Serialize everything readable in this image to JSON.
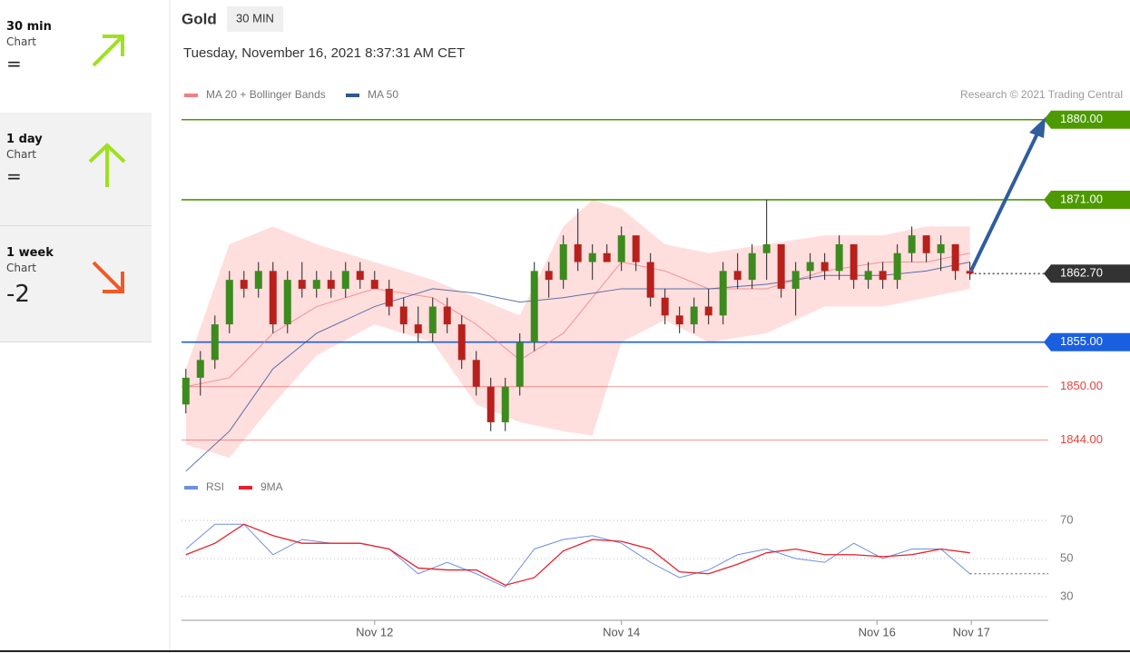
{
  "sidebar": {
    "items": [
      {
        "period": "30 min",
        "label": "Chart",
        "value": "="
      },
      {
        "period": "1 day",
        "label": "Chart",
        "value": "="
      },
      {
        "period": "1 week",
        "label": "Chart",
        "value": "-2"
      }
    ]
  },
  "chart_data": {
    "type": "candlestick",
    "title": "Gold",
    "timeframe": "30 MIN",
    "subtitle": "Tuesday, November 16, 2021 8:37:31 AM CET",
    "annotation": "Research © 2021 Trading Central",
    "up_color": "#3d8b1e",
    "down_color": "#b8201c",
    "x": [
      0,
      1,
      2,
      3,
      4,
      5,
      6,
      7,
      8,
      9,
      10,
      11,
      12,
      13,
      14,
      15,
      16,
      17,
      18,
      19,
      20,
      21,
      22,
      23,
      24,
      25,
      26,
      27,
      28,
      29,
      30,
      31,
      32,
      33,
      34,
      35,
      36,
      37,
      38,
      39,
      40,
      41,
      42,
      43,
      44,
      45,
      46,
      47,
      48,
      49,
      50,
      51,
      52,
      53,
      54
    ],
    "open": [
      1848,
      1851,
      1853,
      1857,
      1862,
      1861,
      1863,
      1857,
      1862,
      1861,
      1862,
      1861,
      1863,
      1862,
      1861,
      1859,
      1857,
      1856,
      1859,
      1857,
      1853,
      1850,
      1846,
      1850,
      1855,
      1863,
      1862,
      1866,
      1864,
      1865,
      1864,
      1867,
      1864,
      1860,
      1858,
      1857,
      1859,
      1858,
      1863,
      1862,
      1865,
      1866,
      1861,
      1863,
      1864,
      1863,
      1866,
      1862,
      1863,
      1862,
      1865,
      1867,
      1865,
      1866,
      1863
    ],
    "high": [
      1852,
      1854,
      1858,
      1863,
      1863,
      1864,
      1864,
      1863,
      1864,
      1863,
      1863,
      1864,
      1864,
      1863,
      1862,
      1860,
      1859,
      1860,
      1860,
      1858,
      1854,
      1851,
      1851,
      1856,
      1864,
      1864,
      1867,
      1870,
      1866,
      1866,
      1868,
      1867,
      1865,
      1861,
      1859,
      1860,
      1861,
      1864,
      1865,
      1866,
      1871,
      1866,
      1864,
      1865,
      1865,
      1867,
      1866,
      1864,
      1864,
      1866,
      1868,
      1867,
      1867,
      1866,
      1864
    ],
    "low": [
      1847,
      1849,
      1852,
      1856,
      1860,
      1860,
      1856,
      1856,
      1860,
      1860,
      1860,
      1860,
      1861,
      1861,
      1858,
      1856,
      1855,
      1855,
      1856,
      1852,
      1849,
      1845,
      1845,
      1849,
      1854,
      1860,
      1861,
      1863,
      1862,
      1864,
      1863,
      1863,
      1859,
      1857,
      1856,
      1856,
      1857,
      1857,
      1861,
      1861,
      1862,
      1860,
      1858,
      1862,
      1862,
      1862,
      1861,
      1861,
      1861,
      1861,
      1864,
      1864,
      1863,
      1862,
      1862
    ],
    "close": [
      1851,
      1853,
      1857,
      1862,
      1861,
      1863,
      1857,
      1862,
      1861,
      1862,
      1861,
      1863,
      1862,
      1861,
      1859,
      1857,
      1856,
      1859,
      1857,
      1853,
      1850,
      1846,
      1850,
      1855,
      1863,
      1862,
      1866,
      1864,
      1865,
      1864,
      1867,
      1864,
      1860,
      1858,
      1857,
      1859,
      1858,
      1863,
      1862,
      1865,
      1866,
      1861,
      1863,
      1864,
      1863,
      1866,
      1862,
      1863,
      1862,
      1865,
      1867,
      1865,
      1866,
      1863,
      1862.7
    ],
    "xlim": [
      -0.3,
      59.4
    ],
    "xticks": [
      {
        "value": 13,
        "label": "Nov 12"
      },
      {
        "value": 30,
        "label": "Nov 14"
      },
      {
        "value": 47.6,
        "label": "Nov 16"
      },
      {
        "value": 54.1,
        "label": "Nov 17"
      }
    ],
    "ylim": [
      1841.4,
      1881.2
    ],
    "overlays": {
      "x": [
        0,
        3,
        6,
        9,
        13,
        17,
        20,
        23,
        26,
        28,
        30,
        33,
        36,
        40,
        44,
        48,
        51,
        54
      ],
      "series": [
        {
          "name": "MA 20 + Bollinger Bands",
          "color": "#f08080",
          "band_color": "#ffd6d6",
          "values": [
            1850,
            1851,
            1856,
            1859,
            1861,
            1860,
            1857,
            1853,
            1856,
            1860,
            1864,
            1863,
            1861,
            1861,
            1863,
            1864,
            1864,
            1865
          ],
          "upper": [
            1852,
            1866,
            1868,
            1866,
            1864,
            1862,
            1860,
            1858,
            1868,
            1871,
            1870,
            1866,
            1865,
            1866,
            1867,
            1867,
            1868,
            1868
          ],
          "lower": [
            1843.5,
            1842,
            1848,
            1853.5,
            1857,
            1855,
            1848,
            1846,
            1845,
            1844.5,
            1855,
            1857.5,
            1855,
            1856,
            1859,
            1859,
            1860,
            1861
          ]
        },
        {
          "name": "MA 50",
          "color": "#2f5597",
          "values": [
            1840.5,
            1845,
            1852,
            1856,
            1859,
            1861,
            1860.5,
            1859.5,
            1860,
            1860.5,
            1861,
            1861,
            1861,
            1861.5,
            1862.5,
            1862.5,
            1863,
            1864
          ]
        }
      ]
    },
    "levels": [
      {
        "value": 1880,
        "label": "1880.00",
        "color": "#4c9a00",
        "boxed": true,
        "dotted": false
      },
      {
        "value": 1871,
        "label": "1871.00",
        "color": "#4c9a00",
        "boxed": true,
        "dotted": false
      },
      {
        "value": 1862.7,
        "label": "1862.70",
        "color": "#333333",
        "boxed": true,
        "dotted": true
      },
      {
        "value": 1855,
        "label": "1855.00",
        "color": "#1a5fe0",
        "boxed": true,
        "dotted": false
      },
      {
        "value": 1850,
        "label": "1850.00",
        "color": "#e8413b",
        "boxed": false,
        "dotted": false
      },
      {
        "value": 1844,
        "label": "1844.00",
        "color": "#e8413b",
        "boxed": false,
        "dotted": false
      }
    ],
    "rsi": {
      "x": [
        0,
        2,
        4,
        6,
        8,
        10,
        12,
        14,
        16,
        18,
        20,
        22,
        24,
        26,
        28,
        30,
        32,
        34,
        36,
        38,
        40,
        42,
        44,
        46,
        48,
        50,
        52,
        54
      ],
      "ylim": [
        19,
        76.2
      ],
      "yticks": [
        30,
        50,
        70
      ],
      "series": [
        {
          "name": "RSI",
          "color": "#6f8fe0",
          "values": [
            55,
            68,
            68,
            52,
            60,
            58,
            58,
            55,
            42,
            48,
            42,
            35,
            55,
            60,
            62,
            58,
            48,
            40,
            44,
            52,
            55,
            50,
            48,
            58,
            50,
            55,
            55,
            42
          ]
        },
        {
          "name": "9MA",
          "color": "#e8202a",
          "values": [
            52,
            58,
            68,
            62,
            58,
            58,
            58,
            55,
            45,
            44,
            44,
            36,
            40,
            54,
            60,
            59,
            55,
            43,
            42,
            47,
            53,
            55,
            52,
            52,
            51,
            52,
            55,
            53
          ]
        }
      ]
    }
  }
}
